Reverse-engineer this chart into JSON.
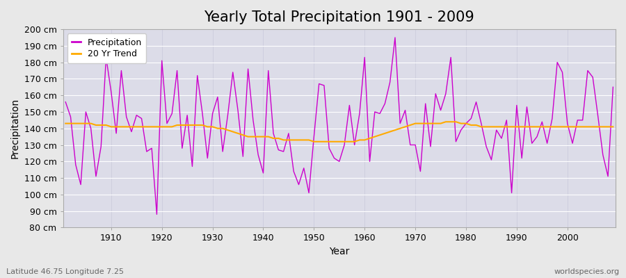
{
  "title": "Yearly Total Precipitation 1901 - 2009",
  "xlabel": "Year",
  "ylabel": "Precipitation",
  "subtitle": "Latitude 46.75 Longitude 7.25",
  "watermark": "worldspecies.org",
  "ylim": [
    80,
    200
  ],
  "ytick_step": 10,
  "years": [
    1901,
    1902,
    1903,
    1904,
    1905,
    1906,
    1907,
    1908,
    1909,
    1910,
    1911,
    1912,
    1913,
    1914,
    1915,
    1916,
    1917,
    1918,
    1919,
    1920,
    1921,
    1922,
    1923,
    1924,
    1925,
    1926,
    1927,
    1928,
    1929,
    1930,
    1931,
    1932,
    1933,
    1934,
    1935,
    1936,
    1937,
    1938,
    1939,
    1940,
    1941,
    1942,
    1943,
    1944,
    1945,
    1946,
    1947,
    1948,
    1949,
    1950,
    1951,
    1952,
    1953,
    1954,
    1955,
    1956,
    1957,
    1958,
    1959,
    1960,
    1961,
    1962,
    1963,
    1964,
    1965,
    1966,
    1967,
    1968,
    1969,
    1970,
    1971,
    1972,
    1973,
    1974,
    1975,
    1976,
    1977,
    1978,
    1979,
    1980,
    1981,
    1982,
    1983,
    1984,
    1985,
    1986,
    1987,
    1988,
    1989,
    1990,
    1991,
    1992,
    1993,
    1994,
    1995,
    1996,
    1997,
    1998,
    1999,
    2000,
    2001,
    2002,
    2003,
    2004,
    2005,
    2006,
    2007,
    2008,
    2009
  ],
  "precip": [
    156,
    147,
    118,
    106,
    150,
    140,
    111,
    129,
    183,
    162,
    137,
    175,
    147,
    138,
    148,
    146,
    126,
    128,
    88,
    181,
    143,
    149,
    175,
    128,
    148,
    117,
    172,
    149,
    122,
    149,
    159,
    126,
    148,
    174,
    151,
    123,
    176,
    145,
    124,
    113,
    175,
    137,
    127,
    126,
    137,
    114,
    106,
    116,
    101,
    135,
    167,
    166,
    128,
    122,
    120,
    130,
    154,
    130,
    149,
    183,
    120,
    150,
    149,
    155,
    168,
    195,
    143,
    151,
    130,
    130,
    114,
    155,
    129,
    161,
    151,
    161,
    183,
    132,
    139,
    143,
    146,
    156,
    143,
    129,
    121,
    139,
    134,
    145,
    101,
    154,
    122,
    153,
    131,
    135,
    144,
    131,
    146,
    180,
    174,
    143,
    131,
    145,
    145,
    175,
    171,
    148,
    124,
    111,
    165
  ],
  "trend": [
    143,
    143,
    143,
    143,
    143,
    143,
    142,
    142,
    142,
    141,
    141,
    141,
    141,
    141,
    141,
    141,
    141,
    141,
    141,
    141,
    141,
    141,
    142,
    142,
    142,
    142,
    142,
    142,
    141,
    141,
    140,
    140,
    139,
    138,
    137,
    136,
    135,
    135,
    135,
    135,
    135,
    134,
    134,
    133,
    133,
    133,
    133,
    133,
    133,
    132,
    132,
    132,
    132,
    132,
    132,
    132,
    132,
    132,
    133,
    133,
    134,
    135,
    136,
    137,
    138,
    139,
    140,
    141,
    142,
    143,
    143,
    143,
    143,
    143,
    143,
    144,
    144,
    144,
    143,
    143,
    142,
    142,
    141,
    141,
    141,
    141,
    141,
    141,
    141,
    141,
    141,
    141,
    141,
    141,
    141,
    141,
    141,
    141,
    141,
    141,
    141,
    141,
    141,
    141,
    141,
    141,
    141,
    141,
    141
  ],
  "precip_color": "#cc00cc",
  "trend_color": "#ffaa00",
  "bg_color": "#e8e8e8",
  "plot_bg_color": "#dcdce8",
  "grid_color_h": "#ffffff",
  "grid_color_v": "#ccccdd",
  "title_fontsize": 15,
  "label_fontsize": 10,
  "tick_fontsize": 9,
  "legend_fontsize": 9,
  "xticks": [
    1910,
    1920,
    1930,
    1940,
    1950,
    1960,
    1970,
    1980,
    1990,
    2000
  ]
}
